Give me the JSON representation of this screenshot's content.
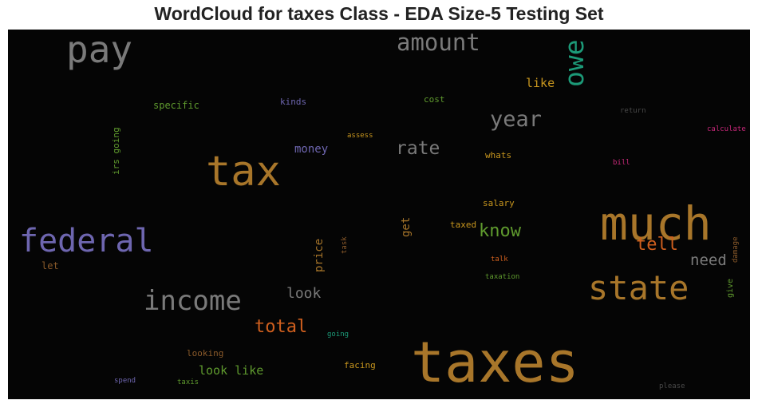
{
  "title": "WordCloud for taxes Class - EDA Size-5 Testing Set",
  "colors": {
    "background": "#050505",
    "gold": "#a8762a",
    "gray": "#7a7a7a",
    "purple": "#6e66b0",
    "orange": "#cf5f1e",
    "green": "#5f9a2e",
    "teal": "#1c9a78",
    "magenta": "#c8287a"
  },
  "words": [
    {
      "text": "taxes",
      "color": "#a8762a"
    },
    {
      "text": "tax",
      "color": "#a8762a"
    },
    {
      "text": "much",
      "color": "#a8762a"
    },
    {
      "text": "federal",
      "color": "#6e66b0"
    },
    {
      "text": "pay",
      "color": "#7a7a7a"
    },
    {
      "text": "state",
      "color": "#a8762a"
    },
    {
      "text": "income",
      "color": "#7a7a7a"
    },
    {
      "text": "amount",
      "color": "#7a7a7a"
    },
    {
      "text": "owe",
      "color": "#1c9a78"
    },
    {
      "text": "year",
      "color": "#7a7a7a"
    },
    {
      "text": "rate",
      "color": "#7a7a7a"
    },
    {
      "text": "total",
      "color": "#cf5f1e"
    },
    {
      "text": "know",
      "color": "#5f9a2e"
    },
    {
      "text": "tell",
      "color": "#cf5f1e"
    },
    {
      "text": "need",
      "color": "#7a7a7a"
    },
    {
      "text": "look",
      "color": "#7a7a7a"
    },
    {
      "text": "look like",
      "color": "#5f9a2e"
    },
    {
      "text": "like",
      "color": "#c8961e"
    },
    {
      "text": "money",
      "color": "#6e66b0"
    },
    {
      "text": "price",
      "color": "#a8762a"
    },
    {
      "text": "get",
      "color": "#a8762a"
    },
    {
      "text": "specific",
      "color": "#5f9a2e"
    },
    {
      "text": "kinds",
      "color": "#6e66b0"
    },
    {
      "text": "cost",
      "color": "#5f9a2e"
    },
    {
      "text": "irs going",
      "color": "#5f9a2e"
    },
    {
      "text": "whats",
      "color": "#c8961e"
    },
    {
      "text": "salary",
      "color": "#c8961e"
    },
    {
      "text": "taxed",
      "color": "#c8961e"
    },
    {
      "text": "looking",
      "color": "#8a5a2a"
    },
    {
      "text": "facing",
      "color": "#c8961e"
    },
    {
      "text": "let",
      "color": "#8a5a2a"
    },
    {
      "text": "assess",
      "color": "#c8961e"
    },
    {
      "text": "return",
      "color": "#4a4a4a"
    },
    {
      "text": "calculate",
      "color": "#c8287a"
    },
    {
      "text": "bill",
      "color": "#c8287a"
    },
    {
      "text": "task",
      "color": "#8a5a2a"
    },
    {
      "text": "talk",
      "color": "#cf5f1e"
    },
    {
      "text": "taxation",
      "color": "#5f9a2e"
    },
    {
      "text": "damage",
      "color": "#8a5a2a"
    },
    {
      "text": "give",
      "color": "#5f9a2e"
    },
    {
      "text": "going",
      "color": "#1c9a78"
    },
    {
      "text": "spend",
      "color": "#6e66b0"
    },
    {
      "text": "taxis",
      "color": "#5f9a2e"
    },
    {
      "text": "please",
      "color": "#4a4a4a"
    }
  ]
}
